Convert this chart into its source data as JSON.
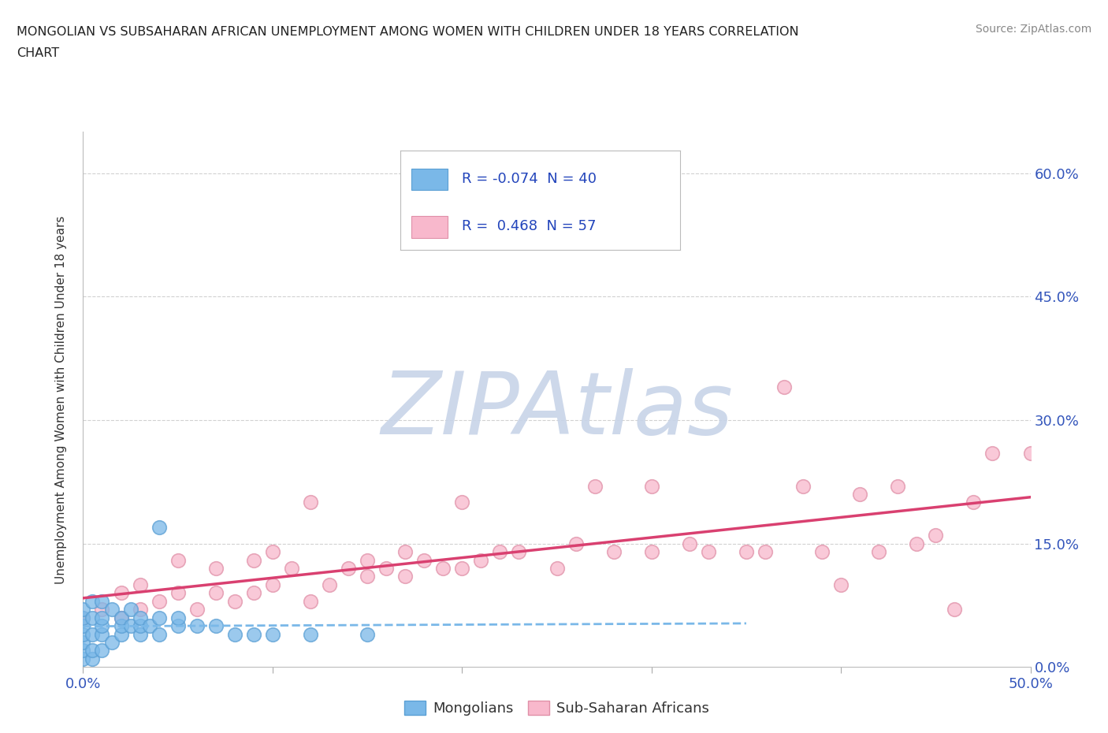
{
  "title_line1": "MONGOLIAN VS SUBSAHARAN AFRICAN UNEMPLOYMENT AMONG WOMEN WITH CHILDREN UNDER 18 YEARS CORRELATION",
  "title_line2": "CHART",
  "source_text": "Source: ZipAtlas.com",
  "ylabel": "Unemployment Among Women with Children Under 18 years",
  "xlim": [
    0.0,
    0.5
  ],
  "ylim": [
    0.0,
    0.65
  ],
  "xticks": [
    0.0,
    0.1,
    0.2,
    0.3,
    0.4,
    0.5
  ],
  "yticks_right": [
    0.0,
    0.15,
    0.3,
    0.45,
    0.6
  ],
  "ytick_right_labels": [
    "0.0%",
    "15.0%",
    "30.0%",
    "45.0%",
    "60.0%"
  ],
  "mongolian_color": "#7ab8e8",
  "mongolian_edge_color": "#5a9fd4",
  "subsaharan_color": "#f8b8cc",
  "subsaharan_edge_color": "#e090a8",
  "mongolian_R": -0.074,
  "mongolian_N": 40,
  "subsaharan_R": 0.468,
  "subsaharan_N": 57,
  "background_color": "#ffffff",
  "grid_color": "#cccccc",
  "watermark": "ZIPAtlas",
  "watermark_color_zip": "#c8d4e8",
  "watermark_color_atlas": "#c8d4e8",
  "legend_label_mongolian": "Mongolians",
  "legend_label_subsaharan": "Sub-Saharan Africans",
  "mongolian_scatter_x": [
    0.0,
    0.0,
    0.0,
    0.0,
    0.0,
    0.0,
    0.0,
    0.005,
    0.005,
    0.005,
    0.005,
    0.005,
    0.01,
    0.01,
    0.01,
    0.01,
    0.01,
    0.015,
    0.015,
    0.02,
    0.02,
    0.02,
    0.025,
    0.025,
    0.03,
    0.03,
    0.03,
    0.035,
    0.04,
    0.04,
    0.04,
    0.05,
    0.05,
    0.06,
    0.07,
    0.08,
    0.09,
    0.1,
    0.12,
    0.15
  ],
  "mongolian_scatter_y": [
    0.01,
    0.02,
    0.03,
    0.04,
    0.05,
    0.06,
    0.07,
    0.01,
    0.02,
    0.04,
    0.06,
    0.08,
    0.02,
    0.04,
    0.05,
    0.06,
    0.08,
    0.03,
    0.07,
    0.04,
    0.05,
    0.06,
    0.05,
    0.07,
    0.04,
    0.05,
    0.06,
    0.05,
    0.04,
    0.06,
    0.17,
    0.05,
    0.06,
    0.05,
    0.05,
    0.04,
    0.04,
    0.04,
    0.04,
    0.04
  ],
  "subsaharan_scatter_x": [
    0.0,
    0.01,
    0.02,
    0.02,
    0.03,
    0.03,
    0.04,
    0.05,
    0.05,
    0.06,
    0.07,
    0.07,
    0.08,
    0.09,
    0.09,
    0.1,
    0.1,
    0.11,
    0.12,
    0.12,
    0.13,
    0.14,
    0.15,
    0.15,
    0.16,
    0.17,
    0.17,
    0.18,
    0.19,
    0.2,
    0.2,
    0.21,
    0.22,
    0.23,
    0.25,
    0.26,
    0.27,
    0.28,
    0.3,
    0.3,
    0.32,
    0.33,
    0.35,
    0.36,
    0.37,
    0.38,
    0.39,
    0.4,
    0.41,
    0.42,
    0.43,
    0.44,
    0.45,
    0.46,
    0.47,
    0.48,
    0.5
  ],
  "subsaharan_scatter_y": [
    0.06,
    0.07,
    0.06,
    0.09,
    0.07,
    0.1,
    0.08,
    0.09,
    0.13,
    0.07,
    0.09,
    0.12,
    0.08,
    0.09,
    0.13,
    0.1,
    0.14,
    0.12,
    0.08,
    0.2,
    0.1,
    0.12,
    0.11,
    0.13,
    0.12,
    0.11,
    0.14,
    0.13,
    0.12,
    0.12,
    0.2,
    0.13,
    0.14,
    0.14,
    0.12,
    0.15,
    0.22,
    0.14,
    0.22,
    0.14,
    0.15,
    0.14,
    0.14,
    0.14,
    0.34,
    0.22,
    0.14,
    0.1,
    0.21,
    0.14,
    0.22,
    0.15,
    0.16,
    0.07,
    0.2,
    0.26,
    0.26
  ]
}
